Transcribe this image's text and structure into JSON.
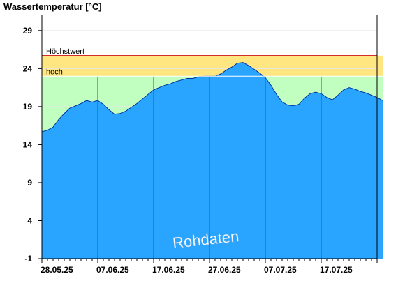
{
  "chart_data": {
    "type": "area",
    "title": "Wassertemperatur [°C]",
    "ylim": [
      -1,
      31
    ],
    "yticks": [
      -1,
      4,
      9,
      14,
      19,
      24,
      29
    ],
    "grid": true,
    "x_tick_labels": [
      "28.05.25",
      "07.06.25",
      "17.06.25",
      "27.06.25",
      "07.07.25",
      "17.07.25"
    ],
    "thresholds": [
      {
        "label": "Höchstwert",
        "value": 25.7,
        "color": "#d42a2a"
      },
      {
        "label": "hoch",
        "value": 23.0,
        "color": "#ffe680"
      }
    ],
    "normal_band_color": "#c0ffc0",
    "series_color": "#2aa5ff",
    "annotation": "Rohdaten",
    "x_start": "2025-05-28",
    "series": [
      {
        "values": [
          [
            "2025-05-28",
            15.7
          ],
          [
            "2025-05-29",
            15.9
          ],
          [
            "2025-05-30",
            16.3
          ],
          [
            "2025-05-31",
            17.3
          ],
          [
            "2025-06-01",
            18.1
          ],
          [
            "2025-06-02",
            18.8
          ],
          [
            "2025-06-03",
            19.1
          ],
          [
            "2025-06-04",
            19.4
          ],
          [
            "2025-06-05",
            19.8
          ],
          [
            "2025-06-06",
            19.6
          ],
          [
            "2025-06-07",
            19.8
          ],
          [
            "2025-06-08",
            19.3
          ],
          [
            "2025-06-09",
            18.6
          ],
          [
            "2025-06-10",
            18.0
          ],
          [
            "2025-06-11",
            18.1
          ],
          [
            "2025-06-12",
            18.4
          ],
          [
            "2025-06-13",
            18.9
          ],
          [
            "2025-06-14",
            19.4
          ],
          [
            "2025-06-15",
            20.0
          ],
          [
            "2025-06-16",
            20.6
          ],
          [
            "2025-06-17",
            21.2
          ],
          [
            "2025-06-18",
            21.5
          ],
          [
            "2025-06-19",
            21.8
          ],
          [
            "2025-06-20",
            22.0
          ],
          [
            "2025-06-21",
            22.3
          ],
          [
            "2025-06-22",
            22.5
          ],
          [
            "2025-06-23",
            22.7
          ],
          [
            "2025-06-24",
            22.7
          ],
          [
            "2025-06-25",
            22.9
          ],
          [
            "2025-06-26",
            23.0
          ],
          [
            "2025-06-27",
            23.0
          ],
          [
            "2025-06-28",
            23.0
          ],
          [
            "2025-06-29",
            23.3
          ],
          [
            "2025-06-30",
            23.8
          ],
          [
            "2025-07-01",
            24.2
          ],
          [
            "2025-07-02",
            24.7
          ],
          [
            "2025-07-03",
            24.8
          ],
          [
            "2025-07-04",
            24.4
          ],
          [
            "2025-07-05",
            23.9
          ],
          [
            "2025-07-06",
            23.4
          ],
          [
            "2025-07-07",
            22.8
          ],
          [
            "2025-07-08",
            21.8
          ],
          [
            "2025-07-09",
            20.6
          ],
          [
            "2025-07-10",
            19.6
          ],
          [
            "2025-07-11",
            19.2
          ],
          [
            "2025-07-12",
            19.1
          ],
          [
            "2025-07-13",
            19.3
          ],
          [
            "2025-07-14",
            20.1
          ],
          [
            "2025-07-15",
            20.7
          ],
          [
            "2025-07-16",
            20.9
          ],
          [
            "2025-07-17",
            20.7
          ],
          [
            "2025-07-18",
            20.2
          ],
          [
            "2025-07-19",
            19.9
          ],
          [
            "2025-07-20",
            20.5
          ],
          [
            "2025-07-21",
            21.2
          ],
          [
            "2025-07-22",
            21.5
          ],
          [
            "2025-07-23",
            21.3
          ],
          [
            "2025-07-24",
            21.0
          ],
          [
            "2025-07-25",
            20.8
          ],
          [
            "2025-07-26",
            20.5
          ],
          [
            "2025-07-27",
            20.2
          ],
          [
            "2025-07-28",
            19.8
          ]
        ]
      }
    ]
  }
}
